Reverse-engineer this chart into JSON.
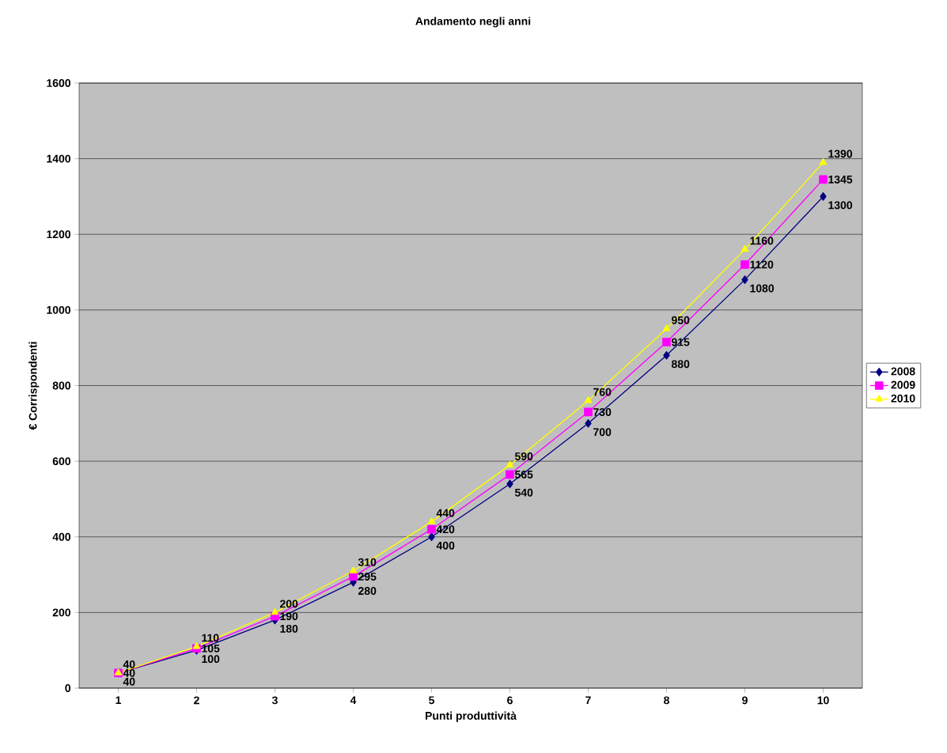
{
  "chart_data": {
    "type": "line",
    "title": "Andamento negli anni",
    "xlabel": "Punti produttività",
    "ylabel": "€ Corrispondenti",
    "categories": [
      "1",
      "2",
      "3",
      "4",
      "5",
      "6",
      "7",
      "8",
      "9",
      "10"
    ],
    "series": [
      {
        "name": "2008",
        "color": "#000080",
        "marker": "diamond",
        "values": [
          40,
          100,
          180,
          280,
          400,
          540,
          700,
          880,
          1080,
          1300
        ]
      },
      {
        "name": "2009",
        "color": "#ff00ff",
        "marker": "square",
        "values": [
          40,
          105,
          190,
          295,
          420,
          565,
          730,
          915,
          1120,
          1345
        ]
      },
      {
        "name": "2010",
        "color": "#ffff00",
        "marker": "triangle",
        "values": [
          40,
          110,
          200,
          310,
          440,
          590,
          760,
          950,
          1160,
          1390
        ]
      }
    ],
    "ylim": [
      0,
      1600
    ],
    "yticks": [
      0,
      200,
      400,
      600,
      800,
      1000,
      1200,
      1400,
      1600
    ],
    "grid": "y",
    "legend": "right",
    "data_labels": true
  }
}
